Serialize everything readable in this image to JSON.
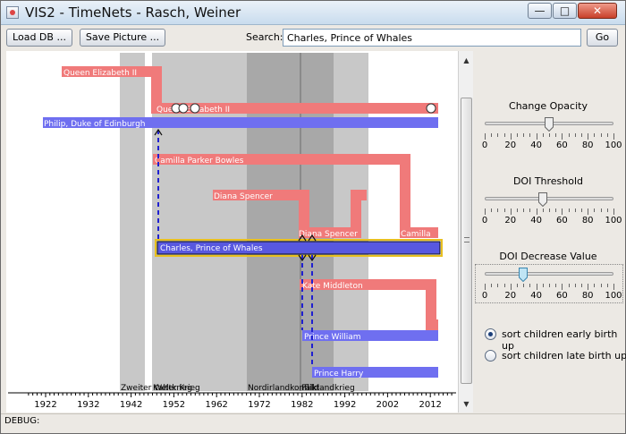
{
  "window": {
    "title": "VIS2 - TimeNets - Rasch, Weiner"
  },
  "title_buttons": {
    "minimize": "—",
    "maximize": "□",
    "close": "✕"
  },
  "toolbar": {
    "load_label": "Load DB ...",
    "save_label": "Save Picture ...",
    "search_label": "Search:",
    "search_value": "Charles, Prince of Whales",
    "go_label": "Go"
  },
  "timeline": {
    "axis_ticks": [
      "1922",
      "1932",
      "1942",
      "1952",
      "1962",
      "1972",
      "1982",
      "1992",
      "2002",
      "2012"
    ],
    "events": [
      {
        "label": "Zweiter Weltkrieg",
        "start": 1939,
        "end": 1945
      },
      {
        "label": "Kalter Krieg",
        "start": 1947,
        "end": 1991
      },
      {
        "label": "Nordirlandkonflikt",
        "start": 1969,
        "end": 1998
      },
      {
        "label": "Falklandkrieg",
        "start": 1982,
        "end": 1982
      }
    ],
    "people": [
      {
        "name": "Queen Elizabeth II",
        "color": "#f07a7a"
      },
      {
        "name": "Philip, Duke of Edinburgh",
        "color": "#6f6ff0"
      },
      {
        "name": "Camilla Parker Bowles",
        "color": "#f07a7a"
      },
      {
        "name": "Diana Spencer",
        "color": "#f07a7a"
      },
      {
        "name": "Charles, Prince of Whales",
        "color": "#5858e0"
      },
      {
        "name": "Kate Middleton",
        "color": "#f07a7a"
      },
      {
        "name": "Prince William",
        "color": "#6f6ff0"
      },
      {
        "name": "Prince Harry",
        "color": "#6f6ff0"
      }
    ],
    "alias_labels": {
      "queen_married": "Queen Elizabeth II",
      "diana_married": "Diana Spencer",
      "camilla_married": "Camilla"
    }
  },
  "controls": {
    "opacity": {
      "title": "Change Opacity",
      "value": 50
    },
    "doi_threshold": {
      "title": "DOI Threshold",
      "value": 45
    },
    "doi_decrease": {
      "title": "DOI Decrease Value",
      "value": 30
    },
    "scale_labels": [
      "0",
      "20",
      "40",
      "60",
      "80",
      "100"
    ],
    "sort_early": "sort children early birth up",
    "sort_late": "sort children late birth up",
    "sort_selected": "early"
  },
  "status": {
    "text": "DEBUG:"
  }
}
